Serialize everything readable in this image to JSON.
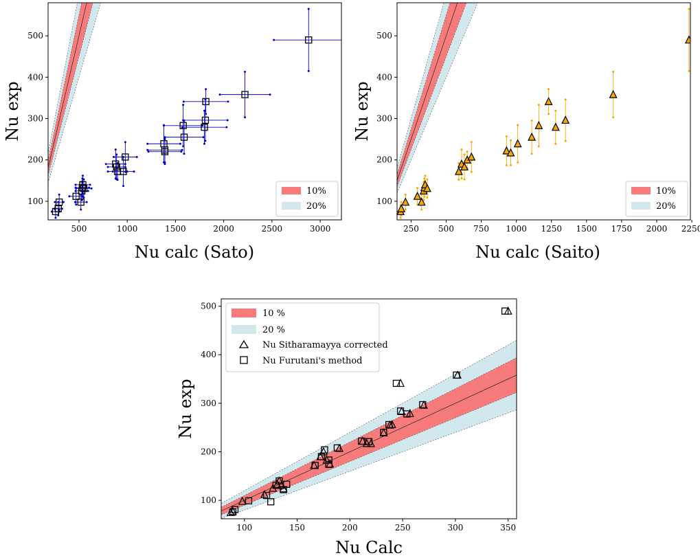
{
  "colors": {
    "band10": "#f77b7b",
    "band20": "#d2e8ef",
    "sato_marker": "#0000cc",
    "saito_marker": "#f5a800",
    "neutral_marker": "#000000"
  },
  "chart_data": [
    {
      "id": "sato",
      "type": "scatter",
      "xlabel": "Nu calc (Sato)",
      "ylabel": "Nu exp",
      "xlim": [
        180,
        3220
      ],
      "ylim": [
        55,
        580
      ],
      "xticks": [
        500,
        1000,
        1500,
        2000,
        2500,
        3000
      ],
      "yticks": [
        100,
        200,
        300,
        400,
        500
      ],
      "legend": {
        "position": "bottom-right",
        "entries": [
          "10%",
          "20%"
        ]
      },
      "bands": [
        {
          "name": "20%",
          "rel": 0.2
        },
        {
          "name": "10%",
          "rel": 0.1
        }
      ],
      "marker": "square",
      "series": [
        {
          "x": [
            258,
            285,
            295,
            470,
            520,
            530,
            535,
            540,
            550,
            880,
            890,
            900,
            960,
            980,
            1380,
            1390,
            1390,
            1580,
            1590,
            1800,
            1810,
            1815,
            2220,
            2880
          ],
          "y": [
            75,
            82,
            98,
            112,
            98,
            125,
            133,
            140,
            131,
            190,
            183,
            172,
            172,
            207,
            239,
            220,
            224,
            283,
            255,
            279,
            296,
            341,
            358,
            490
          ],
          "xerr": [
            40,
            40,
            45,
            70,
            60,
            65,
            70,
            75,
            80,
            100,
            90,
            100,
            110,
            120,
            170,
            170,
            180,
            200,
            200,
            230,
            230,
            230,
            260,
            360
          ],
          "yerr": [
            15,
            16,
            18,
            20,
            18,
            22,
            22,
            22,
            22,
            35,
            30,
            20,
            35,
            36,
            45,
            30,
            30,
            50,
            40,
            40,
            50,
            30,
            55,
            75
          ]
        }
      ]
    },
    {
      "id": "saito",
      "type": "scatter",
      "xlabel": "Nu calc (Saito)",
      "ylabel": "Nu exp",
      "xlim": [
        150,
        2240
      ],
      "ylim": [
        55,
        580
      ],
      "xticks": [
        250,
        500,
        750,
        1000,
        1250,
        1500,
        1750,
        2000,
        2250
      ],
      "yticks": [
        100,
        200,
        300,
        400,
        500
      ],
      "legend": {
        "position": "bottom-right",
        "entries": [
          "10%",
          "20%"
        ]
      },
      "bands": [
        {
          "name": "20%",
          "rel": 0.2
        },
        {
          "name": "10%",
          "rel": 0.1
        }
      ],
      "marker": "triangle",
      "series": [
        {
          "x": [
            175,
            180,
            210,
            295,
            325,
            340,
            345,
            350,
            365,
            590,
            610,
            630,
            650,
            680,
            930,
            960,
            1010,
            1110,
            1160,
            1230,
            1280,
            1350,
            1690,
            2230
          ],
          "y": [
            75,
            82,
            98,
            112,
            98,
            125,
            133,
            140,
            131,
            172,
            190,
            183,
            200,
            207,
            222,
            217,
            239,
            255,
            283,
            341,
            279,
            296,
            358,
            490
          ],
          "yerr": [
            15,
            16,
            18,
            20,
            18,
            22,
            22,
            22,
            22,
            20,
            35,
            30,
            20,
            36,
            35,
            30,
            45,
            40,
            50,
            30,
            40,
            50,
            55,
            75
          ]
        }
      ]
    },
    {
      "id": "combined",
      "type": "scatter",
      "xlabel": "Nu Calc",
      "ylabel": "Nu exp",
      "xlim": [
        78,
        358
      ],
      "ylim": [
        62,
        515
      ],
      "xticks": [
        100,
        150,
        200,
        250,
        300,
        350
      ],
      "yticks": [
        100,
        200,
        300,
        400,
        500
      ],
      "legend": {
        "position": "top-left",
        "entries": [
          "10 %",
          "20 %",
          "Nu Sitharamayya corrected",
          "Nu Furutani's method"
        ]
      },
      "bands": [
        {
          "name": "20 %",
          "rel": 0.2
        },
        {
          "name": "10 %",
          "rel": 0.1
        }
      ],
      "series": [
        {
          "name": "Nu Sitharamayya corrected",
          "marker": "triangle",
          "x": [
            87,
            89,
            98,
            119,
            127,
            131,
            133,
            135,
            137,
            166,
            172,
            175,
            178,
            181,
            190,
            212,
            216,
            220,
            232,
            238,
            240,
            249,
            257,
            270,
            248,
            302,
            350
          ],
          "y": [
            75,
            77,
            98,
            112,
            125,
            133,
            140,
            131,
            124,
            172,
            190,
            200,
            183,
            175,
            207,
            222,
            217,
            217,
            239,
            255,
            256,
            283,
            279,
            296,
            341,
            358,
            490
          ]
        },
        {
          "name": "Nu Furutani's method",
          "marker": "square",
          "x": [
            89,
            91,
            104,
            121,
            125,
            130,
            133,
            137,
            140,
            167,
            173,
            176,
            180,
            180,
            188,
            211,
            218,
            232,
            237,
            248,
            254,
            269,
            244,
            301,
            347
          ],
          "y": [
            76,
            81,
            99,
            110,
            97,
            131,
            140,
            122,
            133,
            172,
            190,
            204,
            174,
            183,
            208,
            222,
            221,
            240,
            256,
            284,
            278,
            297,
            341,
            358,
            490
          ]
        }
      ]
    }
  ]
}
